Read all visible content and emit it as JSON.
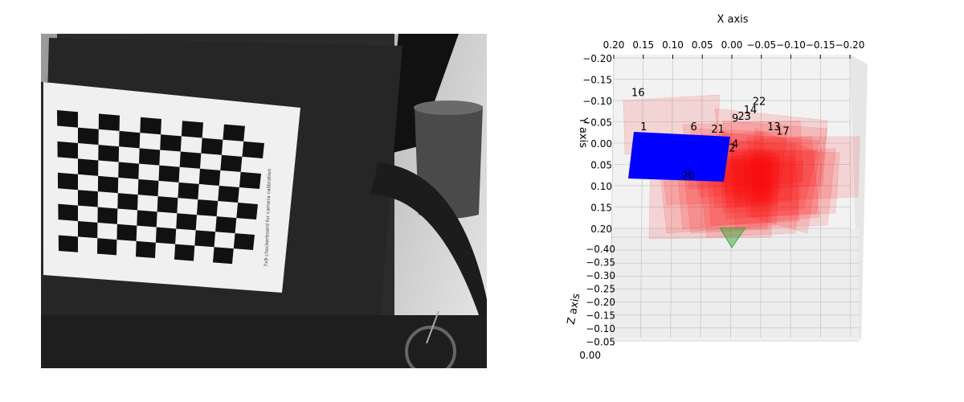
{
  "figure": {
    "photo": {
      "description_label": "grayscale camera frame of chessboard calibration target",
      "board": {
        "rows": 6,
        "cols": 10
      },
      "side_text": "7x9 checkerboard for camera calibration"
    },
    "plot": {
      "x_axis_label": "X axis",
      "y_axis_label": "Y axis",
      "z_axis_label": "Z axis",
      "x_ticks": [
        "0.20",
        "0.15",
        "0.10",
        "0.05",
        "0.00",
        "−0.05",
        "−0.10",
        "−0.15",
        "−0.20"
      ],
      "y_ticks": [
        "−0.20",
        "−0.15",
        "−0.10",
        "−0.05",
        "0.00",
        "0.05",
        "0.10",
        "0.15",
        "0.20"
      ],
      "z_ticks": [
        "−0.40",
        "−0.35",
        "−0.30",
        "−0.25",
        "−0.20",
        "−0.15",
        "−0.10",
        "−0.05",
        "0.00"
      ]
    }
  },
  "chart_data": {
    "type": "scatter",
    "title": "",
    "xlabel": "X axis",
    "ylabel": "Y axis",
    "zlabel": "Z axis",
    "xlim": [
      0.2,
      -0.2
    ],
    "ylim": [
      -0.2,
      0.2
    ],
    "zlim": [
      -0.4,
      0.0
    ],
    "grid": true,
    "colors": {
      "highlight_board": "#0000ff",
      "other_boards": "#ff0000",
      "camera": "#2ca02c"
    },
    "board_labels": [
      "1",
      "2",
      "4",
      "6",
      "9",
      "13",
      "14",
      "16",
      "17",
      "20",
      "21",
      "22",
      "23"
    ],
    "board_label_positions": [
      {
        "label": "16",
        "x": 0.17,
        "y": -0.11
      },
      {
        "label": "1",
        "x": 0.155,
        "y": -0.03
      },
      {
        "label": "6",
        "x": 0.07,
        "y": -0.03
      },
      {
        "label": "21",
        "x": 0.035,
        "y": -0.025
      },
      {
        "label": "9",
        "x": 0.0,
        "y": -0.05
      },
      {
        "label": "23",
        "x": -0.01,
        "y": -0.055
      },
      {
        "label": "14",
        "x": -0.02,
        "y": -0.07
      },
      {
        "label": "22",
        "x": -0.035,
        "y": -0.09
      },
      {
        "label": "13",
        "x": -0.06,
        "y": -0.03
      },
      {
        "label": "17",
        "x": -0.075,
        "y": -0.02
      },
      {
        "label": "4",
        "x": 0.0,
        "y": 0.01
      },
      {
        "label": "2",
        "x": 0.005,
        "y": 0.02
      },
      {
        "label": "20",
        "x": 0.085,
        "y": 0.085
      }
    ]
  }
}
